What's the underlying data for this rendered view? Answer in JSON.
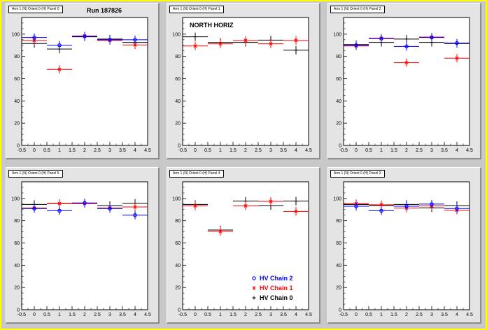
{
  "run_label": "Run 187826",
  "legend": [
    {
      "label": "HV Chain 2",
      "color": "#0000ff",
      "marker": "circle"
    },
    {
      "label": "HV Chain 1",
      "color": "#ff0000",
      "marker": "star"
    },
    {
      "label": "HV Chain 0",
      "color": "#000000",
      "marker": "plus"
    }
  ],
  "chart_data": [
    {
      "type": "scatter",
      "title": "Arm 1 (N) Orient 0 (H) Panel 0",
      "annotation": "Run 187826",
      "xlim": [
        -0.5,
        4.5
      ],
      "ylim": [
        0,
        115
      ],
      "xticks": [
        "-0.5",
        "0",
        "0.5",
        "1",
        "1.5",
        "2",
        "2.5",
        "3",
        "3.5",
        "4",
        "4.5"
      ],
      "yticks": [
        "0",
        "20",
        "40",
        "60",
        "80",
        "100"
      ],
      "series": [
        {
          "name": "HV Chain 2",
          "x": [
            0,
            1,
            2,
            3,
            4
          ],
          "values": [
            97,
            90,
            98,
            95,
            95
          ]
        },
        {
          "name": "HV Chain 1",
          "x": [
            0,
            1,
            2,
            3,
            4
          ],
          "values": [
            95,
            69,
            99,
            95,
            91
          ]
        },
        {
          "name": "HV Chain 0",
          "x": [
            0,
            1,
            2,
            3,
            4
          ],
          "values": [
            91,
            86,
            97,
            95,
            92
          ]
        }
      ]
    },
    {
      "type": "scatter",
      "title": "Arm 1 (N) Orient 0 (H) Panel 1",
      "annotation": "NORTH HORIZ",
      "xlim": [
        -0.5,
        4.5
      ],
      "ylim": [
        0,
        115
      ],
      "xticks": [
        "-0.5",
        "0",
        "0.5",
        "1",
        "1.5",
        "2",
        "2.5",
        "3",
        "3.5",
        "4",
        "4.5"
      ],
      "yticks": [
        "0",
        "20",
        "40",
        "60",
        "80",
        "100"
      ],
      "series": [
        {
          "name": "HV Chain 2",
          "x": [],
          "values": []
        },
        {
          "name": "HV Chain 1",
          "x": [
            0,
            1,
            2,
            3,
            4
          ],
          "values": [
            90,
            92,
            95,
            92,
            95
          ]
        },
        {
          "name": "HV Chain 0",
          "x": [
            0,
            1,
            2,
            3,
            4
          ],
          "values": [
            97,
            92,
            92,
            94,
            85
          ]
        }
      ]
    },
    {
      "type": "scatter",
      "title": "Arm 1 (N) Orient 0 (H) Panel 2",
      "annotation": "",
      "xlim": [
        -0.5,
        4.5
      ],
      "ylim": [
        0,
        115
      ],
      "xticks": [
        "-0.5",
        "0",
        "0.5",
        "1",
        "1.5",
        "2",
        "2.5",
        "3",
        "3.5",
        "4",
        "4.5"
      ],
      "yticks": [
        "0",
        "20",
        "40",
        "60",
        "80",
        "100"
      ],
      "series": [
        {
          "name": "HV Chain 2",
          "x": [
            0,
            1,
            2,
            3,
            4
          ],
          "values": [
            90,
            96,
            89,
            97,
            92
          ]
        },
        {
          "name": "HV Chain 1",
          "x": [
            0,
            1,
            2,
            3,
            4
          ],
          "values": [
            90,
            97,
            75,
            98,
            79
          ]
        },
        {
          "name": "HV Chain 0",
          "x": [
            0,
            1,
            2,
            3,
            4
          ],
          "values": [
            90,
            92,
            95,
            92,
            91
          ]
        }
      ]
    },
    {
      "type": "scatter",
      "title": "Arm 1 (N) Orient 0 (H) Panel 5",
      "annotation": "",
      "xlim": [
        -0.5,
        4.5
      ],
      "ylim": [
        0,
        115
      ],
      "xticks": [
        "-0.5",
        "0",
        "0.5",
        "1",
        "1.5",
        "2",
        "2.5",
        "3",
        "3.5",
        "4",
        "4.5"
      ],
      "yticks": [
        "0",
        "20",
        "40",
        "60",
        "80",
        "100"
      ],
      "series": [
        {
          "name": "HV Chain 2",
          "x": [
            0,
            1,
            2,
            3,
            4
          ],
          "values": [
            91,
            89,
            96,
            91,
            85
          ]
        },
        {
          "name": "HV Chain 1",
          "x": [
            0,
            1,
            2,
            3,
            4
          ],
          "values": [
            92,
            96,
            96,
            92,
            93
          ]
        },
        {
          "name": "HV Chain 0",
          "x": [
            0,
            1,
            2,
            3,
            4
          ],
          "values": [
            94,
            95,
            95,
            93,
            95
          ]
        }
      ]
    },
    {
      "type": "scatter",
      "title": "Arm 1 (N) Orient 0 (H) Panel 4",
      "annotation": "",
      "xlim": [
        -0.5,
        4.5
      ],
      "ylim": [
        0,
        115
      ],
      "xticks": [
        "-0.5",
        "0",
        "0.5",
        "1",
        "1.5",
        "2",
        "2.5",
        "3",
        "3.5",
        "4",
        "4.5"
      ],
      "yticks": [
        "0",
        "20",
        "40",
        "60",
        "80",
        "100"
      ],
      "series": [
        {
          "name": "HV Chain 2",
          "x": [],
          "values": []
        },
        {
          "name": "HV Chain 1",
          "x": [
            0,
            1,
            2,
            3,
            4
          ],
          "values": [
            94,
            71,
            94,
            98,
            89
          ]
        },
        {
          "name": "HV Chain 0",
          "x": [
            0,
            1,
            2,
            3,
            4
          ],
          "values": [
            94,
            71,
            97,
            93,
            97
          ]
        }
      ]
    },
    {
      "type": "scatter",
      "title": "Arm 1 (N) Orient 0 (H) Panel 3",
      "annotation": "",
      "xlim": [
        -0.5,
        4.5
      ],
      "ylim": [
        0,
        115
      ],
      "xticks": [
        "-0.5",
        "0",
        "0.5",
        "1",
        "1.5",
        "2",
        "2.5",
        "3",
        "3.5",
        "4",
        "4.5"
      ],
      "yticks": [
        "0",
        "20",
        "40",
        "60",
        "80",
        "100"
      ],
      "series": [
        {
          "name": "HV Chain 2",
          "x": [
            0,
            1,
            2,
            3,
            4
          ],
          "values": [
            93,
            89,
            93,
            95,
            91
          ]
        },
        {
          "name": "HV Chain 1",
          "x": [
            0,
            1,
            2,
            3,
            4
          ],
          "values": [
            96,
            95,
            92,
            94,
            90
          ]
        },
        {
          "name": "HV Chain 0",
          "x": [
            0,
            1,
            2,
            3,
            4
          ],
          "values": [
            94,
            93,
            94,
            91,
            93
          ]
        }
      ]
    }
  ]
}
